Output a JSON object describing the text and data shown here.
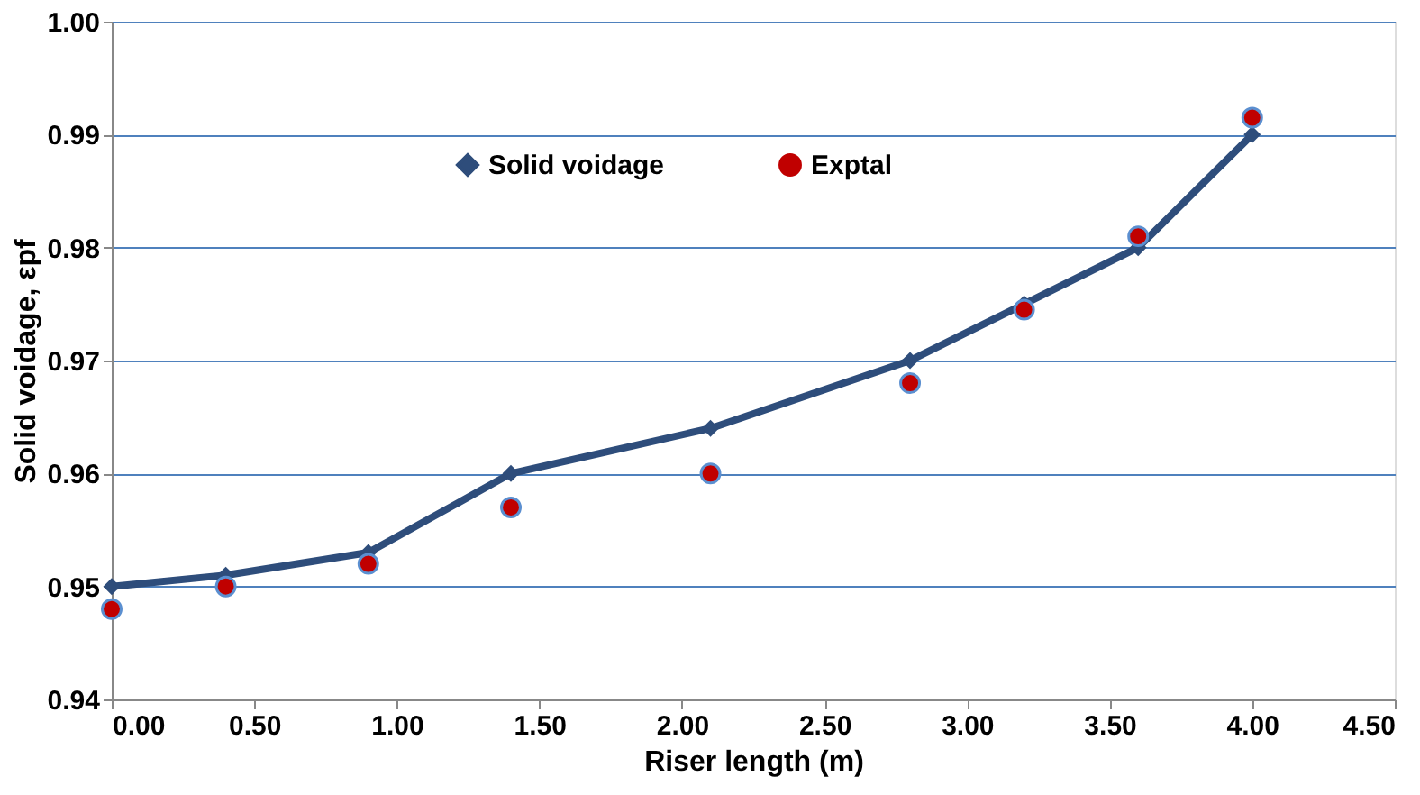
{
  "chart_data": {
    "type": "line",
    "xlabel": "Riser length (m)",
    "ylabel": "Solid voidage, εpf",
    "series": [
      {
        "name": "Solid voidage",
        "marker": "diamond",
        "color": "#2e4d7b",
        "x": [
          0,
          0.4,
          0.9,
          1.4,
          2.1,
          2.8,
          3.2,
          3.6,
          4.0
        ],
        "values": [
          0.95,
          0.951,
          0.953,
          0.96,
          0.964,
          0.97,
          0.975,
          0.98,
          0.99
        ]
      },
      {
        "name": "Exptal",
        "type": "scatter",
        "marker": "circle",
        "color": "#c00000",
        "x": [
          0,
          0.4,
          0.9,
          1.4,
          2.1,
          2.8,
          3.2,
          3.6,
          4.0
        ],
        "values": [
          0.948,
          0.95,
          0.952,
          0.957,
          0.96,
          0.968,
          0.9745,
          0.981,
          0.9915
        ]
      }
    ],
    "xlim": [
      0,
      4.5
    ],
    "xticks": [
      {
        "value": 0,
        "label": "0.00"
      },
      {
        "value": 0.5,
        "label": "0.50"
      },
      {
        "value": 1,
        "label": "1.00"
      },
      {
        "value": 1.5,
        "label": "1.50"
      },
      {
        "value": 2,
        "label": "2.00"
      },
      {
        "value": 2.5,
        "label": "2.50"
      },
      {
        "value": 3,
        "label": "3.00"
      },
      {
        "value": 3.5,
        "label": "3.50"
      },
      {
        "value": 4,
        "label": "4.00"
      },
      {
        "value": 4.5,
        "label": "4.50"
      }
    ],
    "ylim": [
      0.94,
      1.0
    ],
    "yticks": [
      {
        "value": 0.94,
        "label": "0.94"
      },
      {
        "value": 0.95,
        "label": "0.95"
      },
      {
        "value": 0.96,
        "label": "0.96"
      },
      {
        "value": 0.97,
        "label": "0.97"
      },
      {
        "value": 0.98,
        "label": "0.98"
      },
      {
        "value": 0.99,
        "label": "0.99"
      },
      {
        "value": 1.0,
        "label": "1.00"
      }
    ],
    "grid": "y",
    "legend": "top"
  }
}
